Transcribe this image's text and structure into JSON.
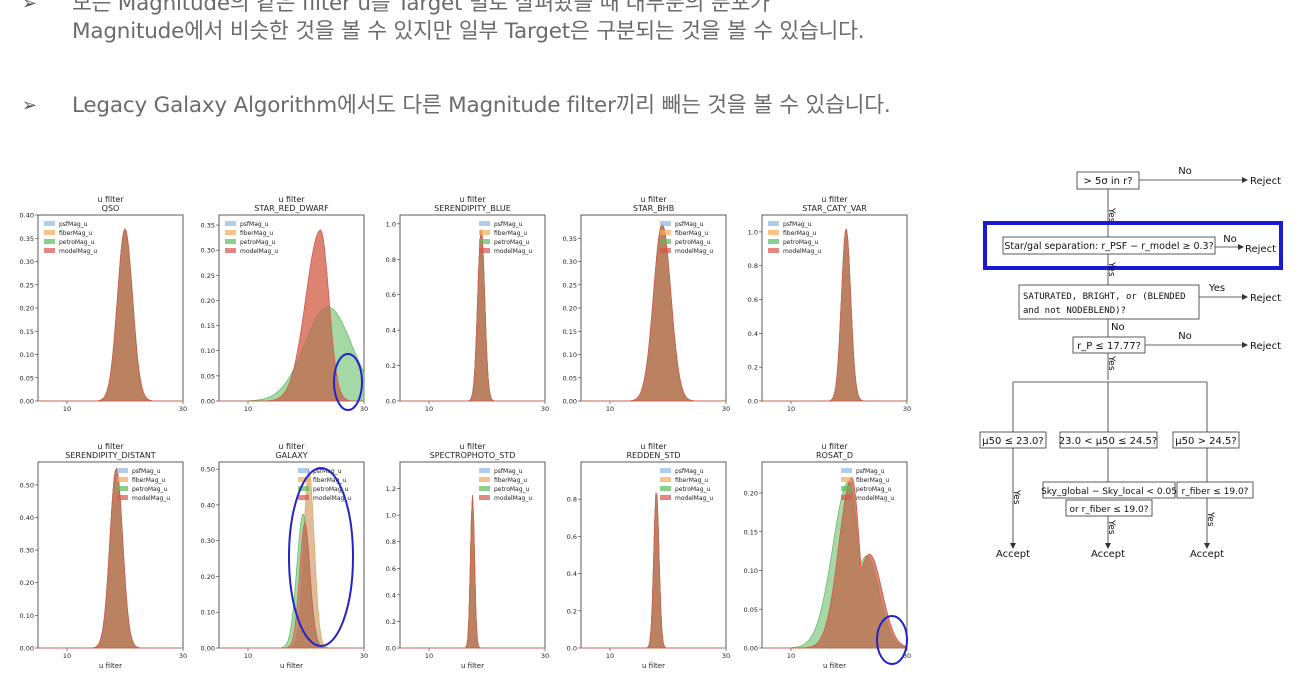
{
  "bullets": [
    {
      "marker": "➢",
      "lines": [
        "모든 Magnitude의 같은 filter u를 Target 별로 살펴봤을 때 대부분의 분포가",
        "Magnitude에서 비슷한 것을 볼 수 있지만 일부 Target은 구분되는 것을 볼 수 있습니다."
      ]
    },
    {
      "marker": "➢",
      "lines": [
        "Legacy Galaxy Algorithm에서도 다른 Magnitude filter끼리 빼는 것을 볼 수 있습니다."
      ]
    }
  ],
  "colors": {
    "psf": "#8fb6e0",
    "fiber": "#f7a85a",
    "petro": "#5cb85c",
    "model": "#d9534f",
    "highlight": "#1a1ad6",
    "circle": "#2323c9"
  },
  "chart_data": [
    {
      "type": "area",
      "title": "u filter",
      "subtitle": "QSO",
      "xlabel": "",
      "xticks": [
        10,
        30
      ],
      "xlim": [
        5,
        30
      ],
      "ylim": [
        0,
        0.4
      ],
      "yticks": [
        0.0,
        0.05,
        0.1,
        0.15,
        0.2,
        0.25,
        0.3,
        0.35,
        0.4
      ],
      "peak_x": 20,
      "peak": 0.37,
      "legend": "top-left",
      "series": [
        "psfMag_u",
        "fiberMag_u",
        "petroMag_u",
        "modelMag_u"
      ]
    },
    {
      "type": "area",
      "title": "u filter",
      "subtitle": "STAR_RED_DWARF",
      "xlabel": "",
      "xticks": [
        10,
        30
      ],
      "xlim": [
        5,
        30
      ],
      "ylim": [
        0,
        0.37
      ],
      "yticks": [
        0.0,
        0.05,
        0.1,
        0.15,
        0.2,
        0.25,
        0.3,
        0.35
      ],
      "peak_x": 22.5,
      "peak": 0.34,
      "legend": "top-left",
      "series": [
        "psfMag_u",
        "fiberMag_u",
        "petroMag_u",
        "modelMag_u"
      ]
    },
    {
      "type": "area",
      "title": "u filter",
      "subtitle": "SERENDIPITY_BLUE",
      "xlabel": "",
      "xticks": [
        10,
        30
      ],
      "xlim": [
        5,
        30
      ],
      "ylim": [
        0,
        1.05
      ],
      "yticks": [
        0.0,
        0.2,
        0.4,
        0.6,
        0.8,
        1.0
      ],
      "peak_x": 19,
      "peak": 0.97,
      "legend": "top-right",
      "series": [
        "psfMag_u",
        "fiberMag_u",
        "petroMag_u",
        "modelMag_u"
      ]
    },
    {
      "type": "area",
      "title": "u filter",
      "subtitle": "STAR_BHB",
      "xlabel": "",
      "xticks": [
        10,
        30
      ],
      "xlim": [
        5,
        30
      ],
      "ylim": [
        0,
        0.4
      ],
      "yticks": [
        0.0,
        0.05,
        0.1,
        0.15,
        0.2,
        0.25,
        0.3,
        0.35
      ],
      "peak_x": 19,
      "peak": 0.38,
      "legend": "top-right",
      "series": [
        "psfMag_u",
        "fiberMag_u",
        "petroMag_u",
        "modelMag_u"
      ]
    },
    {
      "type": "area",
      "title": "u filter",
      "subtitle": "STAR_CATY_VAR",
      "xlabel": "",
      "xticks": [
        10,
        30
      ],
      "xlim": [
        5,
        30
      ],
      "ylim": [
        0,
        1.1
      ],
      "yticks": [
        0.0,
        0.2,
        0.4,
        0.6,
        0.8,
        1.0
      ],
      "peak_x": 19.5,
      "peak": 1.02,
      "legend": "top-left",
      "series": [
        "psfMag_u",
        "fiberMag_u",
        "petroMag_u",
        "modelMag_u"
      ]
    },
    {
      "type": "area",
      "title": "u filter",
      "subtitle": "SERENDIPITY_DISTANT",
      "xlabel": "u filter",
      "xticks": [
        10,
        30
      ],
      "xlim": [
        5,
        30
      ],
      "ylim": [
        0,
        0.57
      ],
      "yticks": [
        0.0,
        0.1,
        0.2,
        0.3,
        0.4,
        0.5
      ],
      "peak_x": 18.5,
      "peak": 0.55,
      "legend": "top-right",
      "series": [
        "psfMag_u",
        "fiberMag_u",
        "petroMag_u",
        "modelMag_u"
      ]
    },
    {
      "type": "area",
      "title": "u filter",
      "subtitle": "GALAXY",
      "xlabel": "u filter",
      "xticks": [
        10,
        30
      ],
      "xlim": [
        5,
        30
      ],
      "ylim": [
        0,
        0.52
      ],
      "yticks": [
        0.0,
        0.1,
        0.2,
        0.3,
        0.4,
        0.5
      ],
      "peak_x": 20.5,
      "peak": 0.5,
      "legend": "top-right",
      "series": [
        "psfMag_u",
        "fiberMag_u",
        "petroMag_u",
        "modelMag_u"
      ]
    },
    {
      "type": "area",
      "title": "u filter",
      "subtitle": "SPECTROPHOTO_STD",
      "xlabel": "u filter",
      "xticks": [
        10,
        30
      ],
      "xlim": [
        5,
        30
      ],
      "ylim": [
        0,
        1.4
      ],
      "yticks": [
        0.0,
        0.2,
        0.4,
        0.6,
        0.8,
        1.0,
        1.2
      ],
      "peak_x": 17.5,
      "peak": 1.15,
      "legend": "top-right",
      "series": [
        "psfMag_u",
        "fiberMag_u",
        "petroMag_u",
        "modelMag_u"
      ]
    },
    {
      "type": "area",
      "title": "u filter",
      "subtitle": "REDDEN_STD",
      "xlabel": "u filter",
      "xticks": [
        10,
        30
      ],
      "xlim": [
        5,
        30
      ],
      "ylim": [
        0,
        1.0
      ],
      "yticks": [
        0.0,
        0.2,
        0.4,
        0.6,
        0.8
      ],
      "peak_x": 18,
      "peak": 0.85,
      "legend": "top-right",
      "series": [
        "psfMag_u",
        "fiberMag_u",
        "petroMag_u",
        "modelMag_u"
      ]
    },
    {
      "type": "area",
      "title": "u filter",
      "subtitle": "ROSAT_D",
      "xlabel": "u filter",
      "xticks": [
        10,
        30
      ],
      "xlim": [
        5,
        30
      ],
      "ylim": [
        0,
        0.24
      ],
      "yticks": [
        0.0,
        0.05,
        0.1,
        0.15,
        0.2
      ],
      "peak_x": 20.5,
      "peak": 0.22,
      "legend": "top-right",
      "series": [
        "psfMag_u",
        "fiberMag_u",
        "petroMag_u",
        "modelMag_u"
      ]
    }
  ],
  "flowchart": {
    "q1": "> 5σ in r?",
    "no": "No",
    "yes": "Yes",
    "reject": "Reject",
    "accept": "Accept",
    "q2": "Star/gal separation: r_PSF − r_model ≥ 0.3?",
    "q3a": "SATURATED, BRIGHT, or (BLENDED",
    "q3b": "and not NODEBLEND)?",
    "q4": "r_P ≤ 17.77?",
    "c1": "μ50 ≤ 23.0?",
    "c2": "23.0 < μ50 ≤ 24.5?",
    "c3": "μ50 > 24.5?",
    "c2b1": "Sky_global − Sky_local < 0.05",
    "c2b2": "or r_fiber ≤ 19.0?",
    "c3b": "r_fiber ≤ 19.0?"
  }
}
